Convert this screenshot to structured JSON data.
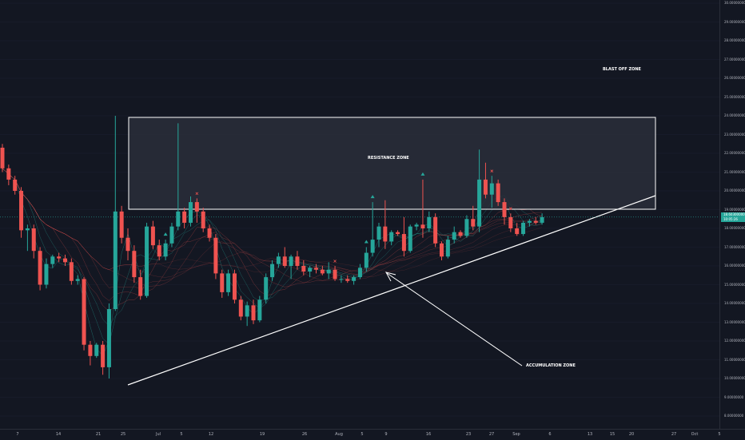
{
  "colors": {
    "background": "#131722",
    "up": "#26a69a",
    "down": "#ef5350",
    "trendline": "#ffffff",
    "zone_fill": "#2a2e39",
    "axis_text": "#b2b5be"
  },
  "annotations": {
    "blast_off": "BLAST OFF ZONE",
    "resistance": "RESISTANCE ZONE",
    "accumulation": "ACCUMULATION ZONE"
  },
  "price_axis": {
    "labels": [
      "30.00000000",
      "29.00000000",
      "28.00000000",
      "27.00000000",
      "26.00000000",
      "25.00000000",
      "24.00000000",
      "23.00000000",
      "22.00000000",
      "21.00000000",
      "20.00000000",
      "19.00000000",
      "18.00000000",
      "17.00000000",
      "16.00000000",
      "15.00000000",
      "14.00000000",
      "13.00000000",
      "12.00000000",
      "11.00000000",
      "10.00000000",
      "9.00000000",
      "8.00000000"
    ],
    "current_price": "18.60300000",
    "current_countdown": "10:05:26"
  },
  "time_axis": {
    "labels": [
      "7",
      "14",
      "21",
      "25",
      "Jul",
      "5",
      "12",
      "19",
      "26",
      "Aug",
      "5",
      "9",
      "16",
      "23",
      "27",
      "Sep",
      "6",
      "13",
      "15",
      "20",
      "27",
      "Oct",
      "5"
    ]
  },
  "chart_data": {
    "type": "candlestick",
    "title": "",
    "ylim": [
      7.6,
      30.2
    ],
    "x_labels": [
      "7",
      "14",
      "21",
      "25",
      "Jul",
      "5",
      "12",
      "19",
      "26",
      "Aug",
      "5",
      "9",
      "16",
      "23",
      "27",
      "Sep",
      "6",
      "13",
      "15",
      "20",
      "27",
      "Oct",
      "5"
    ],
    "candles": [
      {
        "o": 22.3,
        "h": 22.5,
        "l": 21.0,
        "c": 21.2
      },
      {
        "o": 21.2,
        "h": 21.4,
        "l": 20.3,
        "c": 20.6
      },
      {
        "o": 20.6,
        "h": 20.8,
        "l": 19.8,
        "c": 20.0
      },
      {
        "o": 20.0,
        "h": 20.2,
        "l": 17.5,
        "c": 17.9
      },
      {
        "o": 17.9,
        "h": 18.2,
        "l": 16.8,
        "c": 18.0
      },
      {
        "o": 18.0,
        "h": 18.2,
        "l": 16.4,
        "c": 16.8
      },
      {
        "o": 16.8,
        "h": 17.0,
        "l": 14.7,
        "c": 15.0
      },
      {
        "o": 15.0,
        "h": 16.4,
        "l": 14.8,
        "c": 16.1
      },
      {
        "o": 16.1,
        "h": 16.6,
        "l": 15.9,
        "c": 16.5
      },
      {
        "o": 16.5,
        "h": 16.7,
        "l": 16.2,
        "c": 16.4
      },
      {
        "o": 16.4,
        "h": 16.6,
        "l": 16.0,
        "c": 16.2
      },
      {
        "o": 16.2,
        "h": 16.4,
        "l": 15.0,
        "c": 15.2
      },
      {
        "o": 15.2,
        "h": 15.5,
        "l": 15.0,
        "c": 15.3
      },
      {
        "o": 15.3,
        "h": 15.4,
        "l": 11.5,
        "c": 11.8
      },
      {
        "o": 11.8,
        "h": 12.0,
        "l": 10.7,
        "c": 11.2
      },
      {
        "o": 11.2,
        "h": 11.9,
        "l": 11.1,
        "c": 11.8
      },
      {
        "o": 11.8,
        "h": 12.0,
        "l": 10.2,
        "c": 10.6
      },
      {
        "o": 10.6,
        "h": 14.0,
        "l": 10.0,
        "c": 13.7
      },
      {
        "o": 13.7,
        "h": 24.0,
        "l": 13.6,
        "c": 18.9
      },
      {
        "o": 18.9,
        "h": 19.2,
        "l": 17.2,
        "c": 17.5
      },
      {
        "o": 17.5,
        "h": 18.0,
        "l": 16.3,
        "c": 16.8
      },
      {
        "o": 16.8,
        "h": 17.1,
        "l": 15.1,
        "c": 15.4
      },
      {
        "o": 15.4,
        "h": 15.8,
        "l": 14.2,
        "c": 14.4
      },
      {
        "o": 14.4,
        "h": 18.3,
        "l": 14.3,
        "c": 18.1
      },
      {
        "o": 18.1,
        "h": 18.4,
        "l": 16.9,
        "c": 17.1
      },
      {
        "o": 17.1,
        "h": 17.4,
        "l": 16.3,
        "c": 16.5
      },
      {
        "o": 16.5,
        "h": 17.4,
        "l": 16.3,
        "c": 17.2
      },
      {
        "o": 17.2,
        "h": 18.3,
        "l": 17.0,
        "c": 18.1
      },
      {
        "o": 18.1,
        "h": 23.6,
        "l": 17.9,
        "c": 18.9
      },
      {
        "o": 18.9,
        "h": 19.1,
        "l": 18.0,
        "c": 18.3
      },
      {
        "o": 18.3,
        "h": 19.7,
        "l": 18.1,
        "c": 19.4
      },
      {
        "o": 19.4,
        "h": 19.6,
        "l": 18.3,
        "c": 18.9
      },
      {
        "o": 18.9,
        "h": 19.1,
        "l": 17.8,
        "c": 18.0
      },
      {
        "o": 18.0,
        "h": 18.2,
        "l": 17.3,
        "c": 17.5
      },
      {
        "o": 17.5,
        "h": 17.7,
        "l": 15.3,
        "c": 15.6
      },
      {
        "o": 15.6,
        "h": 15.8,
        "l": 14.3,
        "c": 14.6
      },
      {
        "o": 14.6,
        "h": 15.8,
        "l": 14.4,
        "c": 15.6
      },
      {
        "o": 15.6,
        "h": 15.8,
        "l": 14.0,
        "c": 14.2
      },
      {
        "o": 14.2,
        "h": 14.4,
        "l": 13.1,
        "c": 13.3
      },
      {
        "o": 13.3,
        "h": 14.1,
        "l": 12.8,
        "c": 13.9
      },
      {
        "o": 13.9,
        "h": 14.2,
        "l": 12.9,
        "c": 13.1
      },
      {
        "o": 13.1,
        "h": 14.4,
        "l": 13.0,
        "c": 14.2
      },
      {
        "o": 14.2,
        "h": 15.6,
        "l": 14.0,
        "c": 15.4
      },
      {
        "o": 15.4,
        "h": 16.3,
        "l": 15.2,
        "c": 16.1
      },
      {
        "o": 16.1,
        "h": 16.7,
        "l": 15.9,
        "c": 16.5
      },
      {
        "o": 16.5,
        "h": 17.0,
        "l": 15.9,
        "c": 16.0
      },
      {
        "o": 16.0,
        "h": 16.6,
        "l": 15.3,
        "c": 16.5
      },
      {
        "o": 16.5,
        "h": 16.8,
        "l": 15.8,
        "c": 16.0
      },
      {
        "o": 16.0,
        "h": 16.3,
        "l": 15.5,
        "c": 15.7
      },
      {
        "o": 15.7,
        "h": 16.0,
        "l": 15.4,
        "c": 15.9
      },
      {
        "o": 15.9,
        "h": 16.1,
        "l": 15.6,
        "c": 15.8
      },
      {
        "o": 15.8,
        "h": 16.0,
        "l": 15.5,
        "c": 15.6
      },
      {
        "o": 15.6,
        "h": 16.2,
        "l": 15.3,
        "c": 15.8
      },
      {
        "o": 15.8,
        "h": 16.0,
        "l": 15.2,
        "c": 15.3
      },
      {
        "o": 15.3,
        "h": 15.5,
        "l": 15.1,
        "c": 15.3
      },
      {
        "o": 15.3,
        "h": 15.5,
        "l": 15.1,
        "c": 15.2
      },
      {
        "o": 15.2,
        "h": 15.5,
        "l": 15.0,
        "c": 15.4
      },
      {
        "o": 15.4,
        "h": 16.1,
        "l": 15.3,
        "c": 15.9
      },
      {
        "o": 15.9,
        "h": 17.0,
        "l": 15.7,
        "c": 16.7
      },
      {
        "o": 16.7,
        "h": 19.4,
        "l": 16.5,
        "c": 17.4
      },
      {
        "o": 17.4,
        "h": 18.3,
        "l": 17.0,
        "c": 18.1
      },
      {
        "o": 18.1,
        "h": 19.5,
        "l": 16.9,
        "c": 17.3
      },
      {
        "o": 17.3,
        "h": 17.9,
        "l": 17.1,
        "c": 17.8
      },
      {
        "o": 17.8,
        "h": 17.9,
        "l": 17.6,
        "c": 17.7
      },
      {
        "o": 17.7,
        "h": 18.6,
        "l": 16.5,
        "c": 16.8
      },
      {
        "o": 16.8,
        "h": 18.2,
        "l": 16.7,
        "c": 18.1
      },
      {
        "o": 18.1,
        "h": 18.3,
        "l": 17.9,
        "c": 18.2
      },
      {
        "o": 18.2,
        "h": 20.6,
        "l": 17.5,
        "c": 18.0
      },
      {
        "o": 18.0,
        "h": 18.9,
        "l": 17.8,
        "c": 18.6
      },
      {
        "o": 18.6,
        "h": 18.8,
        "l": 17.0,
        "c": 17.2
      },
      {
        "o": 17.2,
        "h": 17.3,
        "l": 16.3,
        "c": 16.5
      },
      {
        "o": 16.5,
        "h": 17.6,
        "l": 16.4,
        "c": 17.4
      },
      {
        "o": 17.4,
        "h": 18.1,
        "l": 17.2,
        "c": 17.8
      },
      {
        "o": 17.8,
        "h": 17.9,
        "l": 17.5,
        "c": 17.6
      },
      {
        "o": 17.6,
        "h": 18.7,
        "l": 17.5,
        "c": 18.5
      },
      {
        "o": 18.5,
        "h": 19.2,
        "l": 17.9,
        "c": 18.1
      },
      {
        "o": 18.1,
        "h": 22.2,
        "l": 17.8,
        "c": 20.6
      },
      {
        "o": 20.6,
        "h": 21.5,
        "l": 19.6,
        "c": 19.8
      },
      {
        "o": 19.8,
        "h": 20.8,
        "l": 19.1,
        "c": 20.4
      },
      {
        "o": 20.4,
        "h": 20.6,
        "l": 19.2,
        "c": 19.4
      },
      {
        "o": 19.4,
        "h": 19.6,
        "l": 18.2,
        "c": 18.6
      },
      {
        "o": 18.6,
        "h": 18.8,
        "l": 17.8,
        "c": 18.0
      },
      {
        "o": 18.0,
        "h": 18.3,
        "l": 17.6,
        "c": 17.7
      },
      {
        "o": 17.7,
        "h": 18.4,
        "l": 17.6,
        "c": 18.3
      },
      {
        "o": 18.3,
        "h": 18.5,
        "l": 18.1,
        "c": 18.4
      },
      {
        "o": 18.4,
        "h": 18.6,
        "l": 18.2,
        "c": 18.3
      },
      {
        "o": 18.3,
        "h": 18.8,
        "l": 18.2,
        "c": 18.6
      }
    ],
    "resistance_zone": {
      "price_low": 19.0,
      "price_high": 24.0
    },
    "trendline": {
      "from_price": 9.6,
      "to_price": 19.8
    },
    "current_price": 18.603
  }
}
